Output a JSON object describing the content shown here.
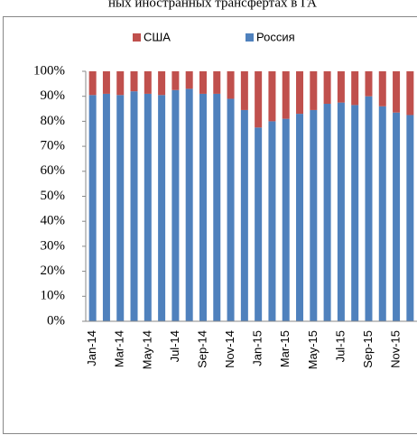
{
  "chart_data": {
    "type": "stacked_bar_100",
    "title": "ных иностранных трансфертах в ГА",
    "categories": [
      "Jan-14",
      null,
      "Mar-14",
      null,
      "May-14",
      null,
      "Jul-14",
      null,
      "Sep-14",
      null,
      "Nov-14",
      null,
      "Jan-15",
      null,
      "Mar-15",
      null,
      "May-15",
      null,
      "Jul-15",
      null,
      "Sep-15",
      null,
      "Nov-15",
      null
    ],
    "series": [
      {
        "name": "Россия",
        "color": "#4f81bd",
        "values": [
          90.5,
          91,
          90.5,
          92,
          91,
          90.5,
          92.5,
          93,
          91,
          91,
          89,
          84.5,
          77.5,
          80,
          81,
          83,
          84.5,
          87,
          87.5,
          86.5,
          90,
          86,
          83.5,
          82.5
        ]
      },
      {
        "name": "США",
        "color": "#c0504d",
        "values": [
          9.5,
          9,
          9.5,
          8,
          9,
          9.5,
          7.5,
          7,
          9,
          9,
          11,
          15.5,
          22.5,
          20,
          19,
          17,
          15.5,
          13,
          12.5,
          13.5,
          10,
          14,
          16.5,
          17.5
        ]
      }
    ],
    "legend_order": [
      1,
      0
    ],
    "ylim": [
      0,
      100
    ],
    "yticks": [
      {
        "value": 0,
        "label": "0%"
      },
      {
        "value": 10,
        "label": "10%"
      },
      {
        "value": 20,
        "label": "20%"
      },
      {
        "value": 30,
        "label": "30%"
      },
      {
        "value": 40,
        "label": "40%"
      },
      {
        "value": 50,
        "label": "50%"
      },
      {
        "value": 60,
        "label": "60%"
      },
      {
        "value": 70,
        "label": "70%"
      },
      {
        "value": 80,
        "label": "80%"
      },
      {
        "value": 90,
        "label": "90%"
      },
      {
        "value": 100,
        "label": "100%"
      }
    ],
    "grid": false
  }
}
